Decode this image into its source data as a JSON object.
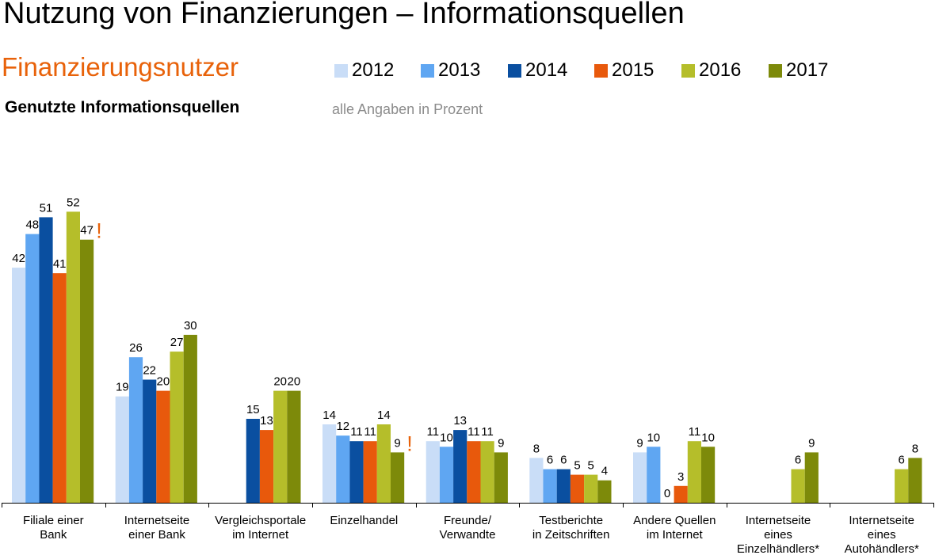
{
  "title": "Nutzung von Finanzierungen – Informationsquellen",
  "subtitle": "Finanzierungsnutzer",
  "section_title": "Genutzte Informationsquellen",
  "note": "alle Angaben in Prozent",
  "colors": {
    "2012": "#c9ddf7",
    "2013": "#5fa6f2",
    "2014": "#0a4fa0",
    "2015": "#e8590c",
    "2016": "#b5be2a",
    "2017": "#7d8a0a",
    "alert": "#e8620a"
  },
  "alert_mark": "!",
  "chart_data": {
    "type": "bar",
    "categories": [
      [
        "Filiale einer",
        "Bank"
      ],
      [
        "Internetseite",
        "einer Bank"
      ],
      [
        "Vergleichsportale",
        "im Internet"
      ],
      [
        "Einzelhandel"
      ],
      [
        "Freunde/",
        "Verwandte"
      ],
      [
        "Testberichte",
        "in Zeitschriften"
      ],
      [
        "Andere Quellen",
        "im Internet"
      ],
      [
        "Internetseite",
        "eines",
        "Einzelhändlers*"
      ],
      [
        "Internetseite",
        "eines",
        "Autohändlers*"
      ]
    ],
    "series": [
      {
        "name": "2012",
        "values": [
          42,
          19,
          null,
          14,
          11,
          8,
          9,
          null,
          null
        ]
      },
      {
        "name": "2013",
        "values": [
          48,
          26,
          null,
          12,
          10,
          6,
          10,
          null,
          null
        ]
      },
      {
        "name": "2014",
        "values": [
          51,
          22,
          15,
          11,
          13,
          6,
          0,
          null,
          null
        ]
      },
      {
        "name": "2015",
        "values": [
          41,
          20,
          13,
          11,
          11,
          5,
          3,
          null,
          null
        ]
      },
      {
        "name": "2016",
        "values": [
          52,
          27,
          20,
          14,
          11,
          5,
          11,
          6,
          6
        ]
      },
      {
        "name": "2017",
        "values": [
          47,
          30,
          20,
          9,
          9,
          4,
          10,
          9,
          8
        ]
      }
    ],
    "alerts": [
      {
        "category": 0,
        "series": 5
      },
      {
        "category": 3,
        "series": 5
      }
    ],
    "ylim": [
      0,
      60
    ],
    "grid": false,
    "legend": "top"
  }
}
